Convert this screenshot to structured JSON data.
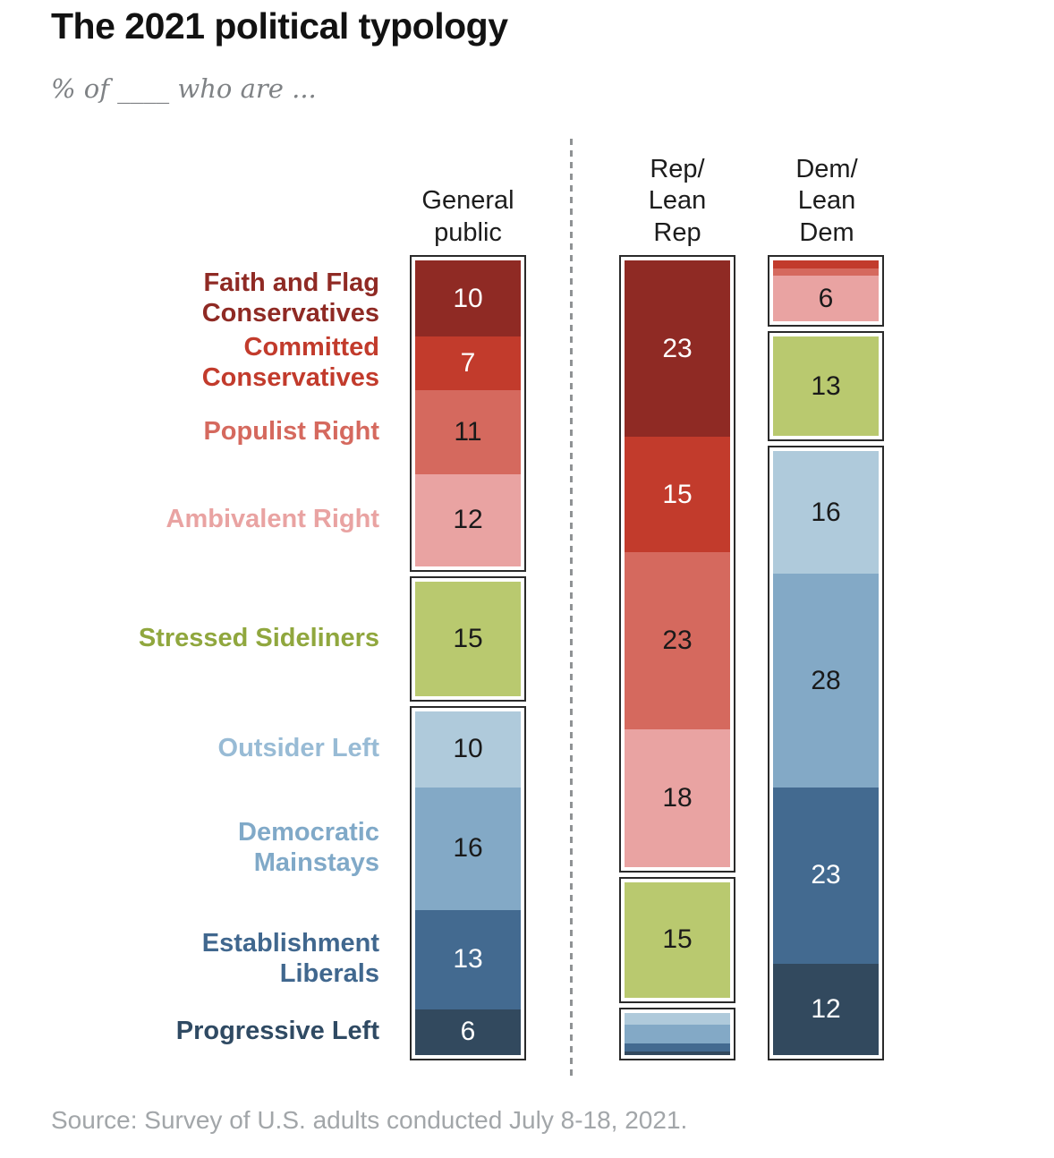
{
  "title": "The 2021 political typology",
  "subtitle": "% of ____ who are ...",
  "source": "Source: Survey of U.S. adults conducted July 8-18, 2021.",
  "chart_data": {
    "type": "bar",
    "variant": "stacked-100pct-vertical-columns",
    "legend_position": "left-row-labels",
    "grid": false,
    "divider": {
      "style": "dotted-vertical",
      "color": "#8f9294"
    },
    "categories": [
      {
        "name": "Faith and Flag Conservatives",
        "slug": "faith-and-flag-conservatives",
        "label_lines": [
          "Faith and Flag",
          "Conservatives"
        ],
        "color": "#8f2a24",
        "label_color": "#8f2a24"
      },
      {
        "name": "Committed Conservatives",
        "slug": "committed-conservatives",
        "label_lines": [
          "Committed",
          "Conservatives"
        ],
        "color": "#c23b2c",
        "label_color": "#c23b2c"
      },
      {
        "name": "Populist Right",
        "slug": "populist-right",
        "label_lines": [
          "Populist Right"
        ],
        "color": "#d5695e",
        "label_color": "#d5695e"
      },
      {
        "name": "Ambivalent Right",
        "slug": "ambivalent-right",
        "label_lines": [
          "Ambivalent Right"
        ],
        "color": "#e9a3a2",
        "label_color": "#e9a3a2"
      },
      {
        "name": "Stressed Sideliners",
        "slug": "stressed-sideliners",
        "label_lines": [
          "Stressed Sideliners"
        ],
        "color": "#b9c96f",
        "label_color": "#90a73e"
      },
      {
        "name": "Outsider Left",
        "slug": "outsider-left",
        "label_lines": [
          "Outsider Left"
        ],
        "color": "#afcadb",
        "label_color": "#98bbd5"
      },
      {
        "name": "Democratic Mainstays",
        "slug": "democratic-mainstays",
        "label_lines": [
          "Democratic",
          "Mainstays"
        ],
        "color": "#83a9c6",
        "label_color": "#80a9c8"
      },
      {
        "name": "Establishment Liberals",
        "slug": "establishment-liberals",
        "label_lines": [
          "Establishment",
          "Liberals"
        ],
        "color": "#436a90",
        "label_color": "#40678e"
      },
      {
        "name": "Progressive Left",
        "slug": "progressive-left",
        "label_lines": [
          "Progressive Left"
        ],
        "color": "#32495e",
        "label_color": "#2f4a63"
      }
    ],
    "columns": [
      {
        "id": "general-public",
        "header_lines": [
          "General",
          "public"
        ],
        "groups": [
          {
            "segments": [
              {
                "category_index": 0,
                "value": 10,
                "display": "10",
                "pct": 10,
                "text_color": "#ffffff"
              },
              {
                "category_index": 1,
                "value": 7,
                "display": "7",
                "pct": 7,
                "text_color": "#ffffff"
              },
              {
                "category_index": 2,
                "value": 11,
                "display": "11",
                "pct": 11,
                "text_color": "#1a1a1a"
              },
              {
                "category_index": 3,
                "value": 12,
                "display": "12",
                "pct": 12,
                "text_color": "#1a1a1a"
              }
            ]
          },
          {
            "segments": [
              {
                "category_index": 4,
                "value": 15,
                "display": "15",
                "pct": 15,
                "text_color": "#1a1a1a"
              }
            ]
          },
          {
            "segments": [
              {
                "category_index": 5,
                "value": 10,
                "display": "10",
                "pct": 10,
                "text_color": "#1a1a1a"
              },
              {
                "category_index": 6,
                "value": 16,
                "display": "16",
                "pct": 16,
                "text_color": "#1a1a1a"
              },
              {
                "category_index": 7,
                "value": 13,
                "display": "13",
                "pct": 13,
                "text_color": "#ffffff"
              },
              {
                "category_index": 8,
                "value": 6,
                "display": "6",
                "pct": 6,
                "text_color": "#ffffff"
              }
            ]
          }
        ]
      },
      {
        "id": "rep-lean-rep",
        "header_lines": [
          "Rep/",
          "Lean",
          "Rep"
        ],
        "groups": [
          {
            "segments": [
              {
                "category_index": 0,
                "value": 23,
                "display": "23",
                "pct": 23,
                "text_color": "#ffffff"
              },
              {
                "category_index": 1,
                "value": 15,
                "display": "15",
                "pct": 15,
                "text_color": "#ffffff"
              },
              {
                "category_index": 2,
                "value": 23,
                "display": "23",
                "pct": 23,
                "text_color": "#1a1a1a"
              },
              {
                "category_index": 3,
                "value": 18,
                "display": "18",
                "pct": 18,
                "text_color": "#1a1a1a"
              }
            ]
          },
          {
            "segments": [
              {
                "category_index": 4,
                "value": 15,
                "display": "15",
                "pct": 15,
                "text_color": "#1a1a1a"
              }
            ]
          },
          {
            "segments": [
              {
                "category_index": 5,
                "value": null,
                "display": "",
                "pct": 1.5
              },
              {
                "category_index": 6,
                "value": null,
                "display": "",
                "pct": 2.5
              },
              {
                "category_index": 7,
                "value": null,
                "display": "",
                "pct": 1
              },
              {
                "category_index": 8,
                "value": null,
                "display": "",
                "pct": 0.5
              }
            ]
          }
        ]
      },
      {
        "id": "dem-lean-dem",
        "header_lines": [
          "Dem/",
          "Lean",
          "Dem"
        ],
        "groups": [
          {
            "segments": [
              {
                "category_index": 1,
                "value": null,
                "display": "",
                "pct": 1
              },
              {
                "category_index": 2,
                "value": null,
                "display": "",
                "pct": 1
              },
              {
                "category_index": 3,
                "value": 6,
                "display": "6",
                "pct": 6,
                "text_color": "#1a1a1a"
              }
            ]
          },
          {
            "segments": [
              {
                "category_index": 4,
                "value": 13,
                "display": "13",
                "pct": 13,
                "text_color": "#1a1a1a"
              }
            ]
          },
          {
            "segments": [
              {
                "category_index": 5,
                "value": 16,
                "display": "16",
                "pct": 16,
                "text_color": "#1a1a1a"
              },
              {
                "category_index": 6,
                "value": 28,
                "display": "28",
                "pct": 28,
                "text_color": "#1a1a1a"
              },
              {
                "category_index": 7,
                "value": 23,
                "display": "23",
                "pct": 23,
                "text_color": "#ffffff"
              },
              {
                "category_index": 8,
                "value": 12,
                "display": "12",
                "pct": 12,
                "text_color": "#ffffff"
              }
            ]
          }
        ]
      }
    ]
  }
}
